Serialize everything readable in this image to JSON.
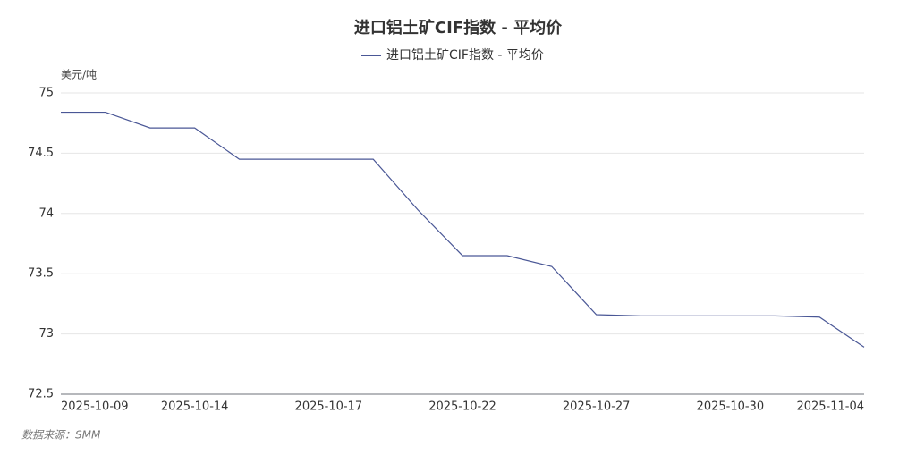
{
  "chart_data": {
    "type": "line",
    "title": "进口铝土矿CIF指数 - 平均价",
    "y_unit": "美元/吨",
    "source": "数据来源：SMM",
    "categories": [
      "2025-10-09",
      null,
      null,
      "2025-10-14",
      null,
      null,
      "2025-10-17",
      null,
      null,
      "2025-10-22",
      null,
      null,
      "2025-10-27",
      null,
      null,
      "2025-10-30",
      null,
      null,
      "2025-11-04"
    ],
    "series": [
      {
        "name": "进口铝土矿CIF指数 - 平均价",
        "color": "#4a5796",
        "values": [
          74.84,
          74.84,
          74.71,
          74.71,
          74.45,
          74.45,
          74.45,
          74.45,
          74.03,
          73.65,
          73.65,
          73.56,
          73.16,
          73.15,
          73.15,
          73.15,
          73.15,
          73.14,
          72.89
        ]
      }
    ],
    "ylim": [
      72.5,
      75
    ],
    "yticks": [
      72.5,
      73,
      73.5,
      74,
      74.5,
      75
    ],
    "grid": true
  }
}
